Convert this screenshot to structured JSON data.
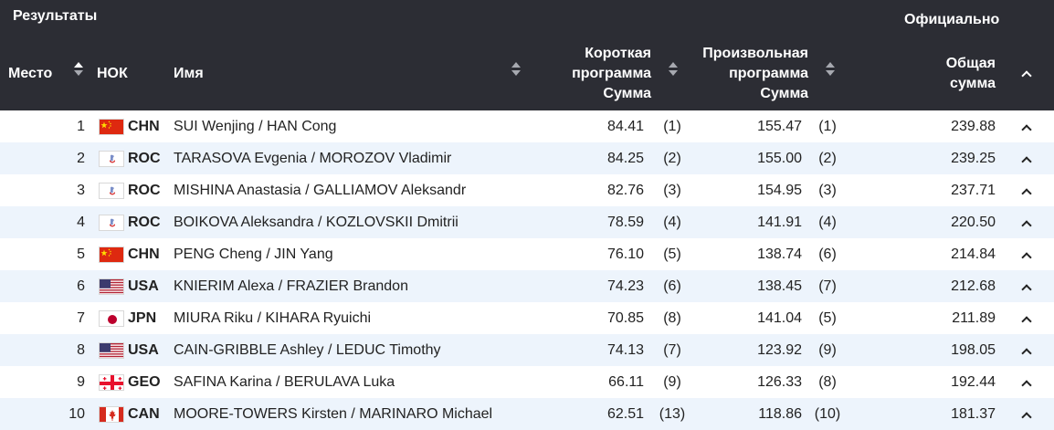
{
  "header": {
    "results_label": "Результаты",
    "official_label": "Официально",
    "col_rank": "Место",
    "col_noc": "НОК",
    "col_name": "Имя",
    "col_sp_line1": "Короткая",
    "col_sp_line2": "программа",
    "col_sp_line3": "Сумма",
    "col_fs_line1": "Произвольная",
    "col_fs_line2": "программа",
    "col_fs_line3": "Сумма",
    "col_total_line1": "Общая",
    "col_total_line2": "сумма"
  },
  "rows": [
    {
      "rank": "1",
      "flag": "china-flag-icon",
      "noc": "CHN",
      "name": "SUI Wenjing / HAN Cong",
      "sp": "84.41",
      "sp_rank": "(1)",
      "fs": "155.47",
      "fs_rank": "(1)",
      "total": "239.88"
    },
    {
      "rank": "2",
      "flag": "roc-flag-icon",
      "noc": "ROC",
      "name": "TARASOVA Evgenia / MOROZOV Vladimir",
      "sp": "84.25",
      "sp_rank": "(2)",
      "fs": "155.00",
      "fs_rank": "(2)",
      "total": "239.25"
    },
    {
      "rank": "3",
      "flag": "roc-flag-icon",
      "noc": "ROC",
      "name": "MISHINA Anastasia / GALLIAMOV Aleksandr",
      "sp": "82.76",
      "sp_rank": "(3)",
      "fs": "154.95",
      "fs_rank": "(3)",
      "total": "237.71"
    },
    {
      "rank": "4",
      "flag": "roc-flag-icon",
      "noc": "ROC",
      "name": "BOIKOVA Aleksandra / KOZLOVSKII Dmitrii",
      "sp": "78.59",
      "sp_rank": "(4)",
      "fs": "141.91",
      "fs_rank": "(4)",
      "total": "220.50"
    },
    {
      "rank": "5",
      "flag": "china-flag-icon",
      "noc": "CHN",
      "name": "PENG Cheng / JIN Yang",
      "sp": "76.10",
      "sp_rank": "(5)",
      "fs": "138.74",
      "fs_rank": "(6)",
      "total": "214.84"
    },
    {
      "rank": "6",
      "flag": "usa-flag-icon",
      "noc": "USA",
      "name": "KNIERIM Alexa / FRAZIER Brandon",
      "sp": "74.23",
      "sp_rank": "(6)",
      "fs": "138.45",
      "fs_rank": "(7)",
      "total": "212.68"
    },
    {
      "rank": "7",
      "flag": "japan-flag-icon",
      "noc": "JPN",
      "name": "MIURA Riku / KIHARA Ryuichi",
      "sp": "70.85",
      "sp_rank": "(8)",
      "fs": "141.04",
      "fs_rank": "(5)",
      "total": "211.89"
    },
    {
      "rank": "8",
      "flag": "usa-flag-icon",
      "noc": "USA",
      "name": "CAIN-GRIBBLE Ashley / LEDUC Timothy",
      "sp": "74.13",
      "sp_rank": "(7)",
      "fs": "123.92",
      "fs_rank": "(9)",
      "total": "198.05"
    },
    {
      "rank": "9",
      "flag": "georgia-flag-icon",
      "noc": "GEO",
      "name": "SAFINA Karina / BERULAVA Luka",
      "sp": "66.11",
      "sp_rank": "(9)",
      "fs": "126.33",
      "fs_rank": "(8)",
      "total": "192.44"
    },
    {
      "rank": "10",
      "flag": "canada-flag-icon",
      "noc": "CAN",
      "name": "MOORE-TOWERS Kirsten / MARINARO Michael",
      "sp": "62.51",
      "sp_rank": "(13)",
      "fs": "118.86",
      "fs_rank": "(10)",
      "total": "181.37"
    }
  ],
  "colors": {
    "header_bg": "#2c2d34",
    "alt_row_bg": "#edf4fc"
  }
}
